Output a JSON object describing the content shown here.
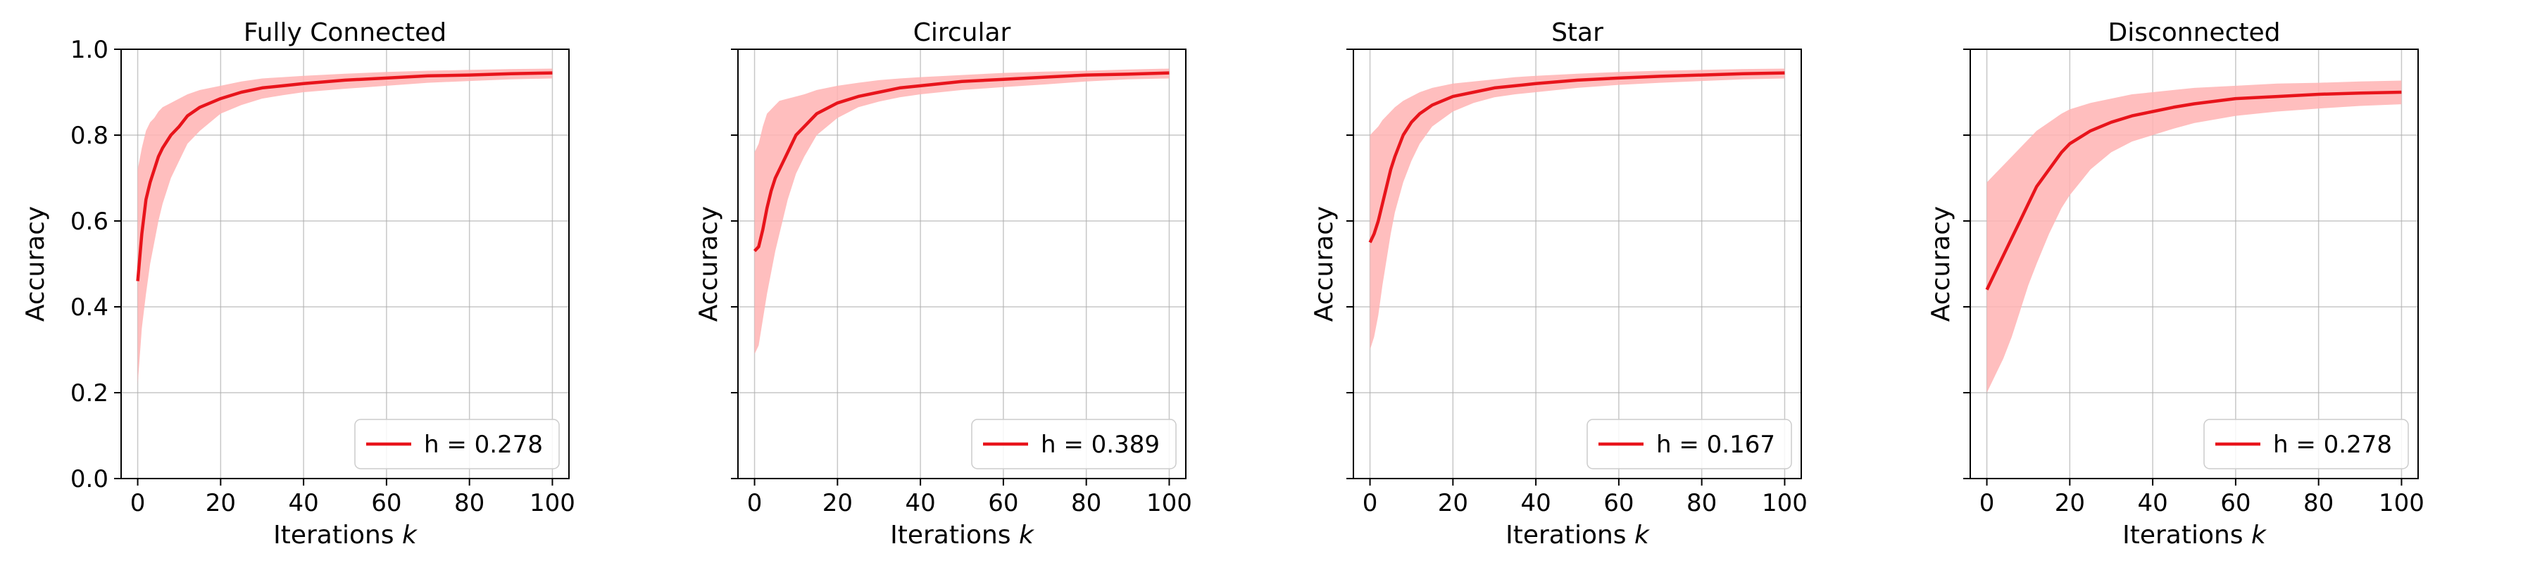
{
  "colors": {
    "line": "#e8141b",
    "band": "#ffb3b3",
    "grid": "#b0b0b0"
  },
  "chart_data": [
    {
      "type": "line",
      "title": "Fully Connected",
      "xlabel": "Iterations k",
      "ylabel": "Accuracy",
      "xlim": [
        -4,
        104
      ],
      "ylim": [
        0.0,
        1.0
      ],
      "xticks": [
        "0",
        "20",
        "40",
        "60",
        "80",
        "100"
      ],
      "yticks": [
        "0.0",
        "0.2",
        "0.4",
        "0.6",
        "0.8",
        "1.0"
      ],
      "legend_position": "lower-right",
      "series": [
        {
          "name": "h = 0.278",
          "x": [
            0,
            1,
            2,
            3,
            4,
            5,
            6,
            8,
            10,
            12,
            15,
            20,
            25,
            30,
            35,
            40,
            50,
            60,
            70,
            80,
            90,
            100
          ],
          "y": [
            0.46,
            0.57,
            0.65,
            0.69,
            0.72,
            0.75,
            0.77,
            0.8,
            0.82,
            0.845,
            0.865,
            0.885,
            0.9,
            0.91,
            0.915,
            0.92,
            0.928,
            0.933,
            0.938,
            0.94,
            0.943,
            0.945
          ],
          "lower": [
            0.22,
            0.35,
            0.43,
            0.5,
            0.55,
            0.6,
            0.64,
            0.7,
            0.74,
            0.78,
            0.81,
            0.85,
            0.87,
            0.885,
            0.893,
            0.9,
            0.908,
            0.915,
            0.922,
            0.926,
            0.93,
            0.932
          ],
          "upper": [
            0.72,
            0.77,
            0.81,
            0.83,
            0.84,
            0.855,
            0.865,
            0.875,
            0.885,
            0.895,
            0.905,
            0.915,
            0.925,
            0.932,
            0.935,
            0.938,
            0.943,
            0.947,
            0.95,
            0.952,
            0.954,
            0.955
          ]
        }
      ]
    },
    {
      "type": "line",
      "title": "Circular",
      "xlabel": "Iterations k",
      "ylabel": "Accuracy",
      "xlim": [
        -4,
        104
      ],
      "ylim": [
        0.0,
        1.0
      ],
      "xticks": [
        "0",
        "20",
        "40",
        "60",
        "80",
        "100"
      ],
      "yticks": [
        "0.0",
        "0.2",
        "0.4",
        "0.6",
        "0.8",
        "1.0"
      ],
      "legend_position": "lower-right",
      "series": [
        {
          "name": "h = 0.389",
          "x": [
            0,
            1,
            2,
            3,
            4,
            5,
            6,
            8,
            10,
            12,
            15,
            20,
            25,
            30,
            35,
            40,
            50,
            60,
            70,
            80,
            90,
            100
          ],
          "y": [
            0.53,
            0.54,
            0.58,
            0.63,
            0.67,
            0.7,
            0.72,
            0.76,
            0.8,
            0.82,
            0.85,
            0.875,
            0.89,
            0.9,
            0.91,
            0.915,
            0.925,
            0.93,
            0.935,
            0.94,
            0.942,
            0.945
          ],
          "lower": [
            0.29,
            0.31,
            0.37,
            0.43,
            0.48,
            0.53,
            0.57,
            0.65,
            0.71,
            0.75,
            0.8,
            0.84,
            0.865,
            0.878,
            0.888,
            0.895,
            0.905,
            0.912,
            0.918,
            0.925,
            0.93,
            0.932
          ],
          "upper": [
            0.76,
            0.78,
            0.82,
            0.85,
            0.86,
            0.87,
            0.88,
            0.885,
            0.89,
            0.895,
            0.905,
            0.915,
            0.922,
            0.928,
            0.932,
            0.935,
            0.94,
            0.945,
            0.948,
            0.95,
            0.953,
            0.955
          ]
        }
      ]
    },
    {
      "type": "line",
      "title": "Star",
      "xlabel": "Iterations k",
      "ylabel": "Accuracy",
      "xlim": [
        -4,
        104
      ],
      "ylim": [
        0.0,
        1.0
      ],
      "xticks": [
        "0",
        "20",
        "40",
        "60",
        "80",
        "100"
      ],
      "yticks": [
        "0.0",
        "0.2",
        "0.4",
        "0.6",
        "0.8",
        "1.0"
      ],
      "legend_position": "lower-right",
      "series": [
        {
          "name": "h = 0.167",
          "x": [
            0,
            1,
            2,
            3,
            4,
            5,
            6,
            8,
            10,
            12,
            15,
            20,
            25,
            30,
            35,
            40,
            50,
            60,
            70,
            80,
            90,
            100
          ],
          "y": [
            0.55,
            0.57,
            0.6,
            0.64,
            0.68,
            0.72,
            0.75,
            0.8,
            0.83,
            0.85,
            0.87,
            0.89,
            0.9,
            0.91,
            0.915,
            0.92,
            0.928,
            0.933,
            0.937,
            0.94,
            0.943,
            0.945
          ],
          "lower": [
            0.3,
            0.33,
            0.38,
            0.45,
            0.51,
            0.57,
            0.62,
            0.69,
            0.74,
            0.78,
            0.82,
            0.855,
            0.875,
            0.888,
            0.895,
            0.9,
            0.91,
            0.917,
            0.922,
            0.926,
            0.93,
            0.932
          ],
          "upper": [
            0.8,
            0.81,
            0.82,
            0.835,
            0.845,
            0.855,
            0.865,
            0.88,
            0.89,
            0.9,
            0.91,
            0.92,
            0.925,
            0.93,
            0.935,
            0.938,
            0.943,
            0.947,
            0.95,
            0.952,
            0.954,
            0.955
          ]
        }
      ]
    },
    {
      "type": "line",
      "title": "Disconnected",
      "xlabel": "Iterations k",
      "ylabel": "Accuracy",
      "xlim": [
        -4,
        104
      ],
      "ylim": [
        0.0,
        1.0
      ],
      "xticks": [
        "0",
        "20",
        "40",
        "60",
        "80",
        "100"
      ],
      "yticks": [
        "0.0",
        "0.2",
        "0.4",
        "0.6",
        "0.8",
        "1.0"
      ],
      "legend_position": "lower-right",
      "series": [
        {
          "name": "h = 0.278",
          "x": [
            0,
            2,
            4,
            6,
            8,
            10,
            12,
            15,
            18,
            20,
            25,
            30,
            35,
            40,
            45,
            50,
            60,
            70,
            80,
            90,
            100
          ],
          "y": [
            0.44,
            0.48,
            0.52,
            0.56,
            0.6,
            0.64,
            0.68,
            0.72,
            0.76,
            0.78,
            0.81,
            0.83,
            0.845,
            0.855,
            0.865,
            0.873,
            0.885,
            0.89,
            0.895,
            0.898,
            0.9
          ],
          "lower": [
            0.2,
            0.24,
            0.28,
            0.33,
            0.39,
            0.45,
            0.5,
            0.57,
            0.63,
            0.66,
            0.72,
            0.76,
            0.785,
            0.8,
            0.815,
            0.828,
            0.845,
            0.855,
            0.862,
            0.868,
            0.872
          ],
          "upper": [
            0.69,
            0.71,
            0.73,
            0.75,
            0.77,
            0.79,
            0.81,
            0.83,
            0.85,
            0.86,
            0.875,
            0.885,
            0.895,
            0.9,
            0.905,
            0.91,
            0.915,
            0.92,
            0.922,
            0.925,
            0.927
          ]
        }
      ]
    }
  ]
}
